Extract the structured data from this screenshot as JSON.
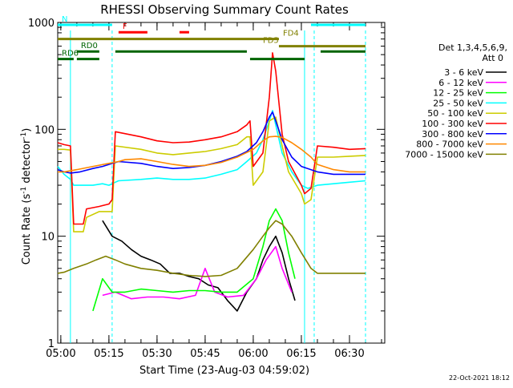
{
  "chart_data": {
    "type": "line",
    "title": "RHESSI Observing Summary Count Rates",
    "xlabel": "Start Time (23-Aug-03 04:59:02)",
    "ylabel": "Count Rate (s",
    "ylabel_sup1": "-1",
    "ylabel_mid": " detector",
    "ylabel_sup2": "-1",
    "ylabel_end": ")",
    "y_scale": "log",
    "ylim": [
      1,
      1000
    ],
    "xlim": [
      "04:59:02",
      "06:41:00"
    ],
    "x_ticks": [
      "05:00",
      "05:15",
      "05:30",
      "05:45",
      "06:00",
      "06:15",
      "06:30"
    ],
    "y_ticks": [
      "1",
      "10",
      "100",
      "1000"
    ],
    "legend_placement": "right",
    "legend_header": [
      "Det 1,3,4,5,6,9,",
      "Att 0"
    ],
    "series": [
      {
        "name": "3 - 6 keV",
        "color": "#000000",
        "points": [
          [
            "05:13",
            14
          ],
          [
            "05:16",
            10
          ],
          [
            "05:19",
            9
          ],
          [
            "05:22",
            7.5
          ],
          [
            "05:25",
            6.5
          ],
          [
            "05:28",
            6
          ],
          [
            "05:31",
            5.5
          ],
          [
            "05:34",
            4.5
          ],
          [
            "05:37",
            4.5
          ],
          [
            "05:40",
            4.2
          ],
          [
            "05:43",
            4
          ],
          [
            "05:46",
            3.5
          ],
          [
            "05:49",
            3.3
          ],
          [
            "05:52",
            2.5
          ],
          [
            "05:55",
            2
          ],
          [
            "05:58",
            3
          ],
          [
            "06:01",
            4
          ],
          [
            "06:03",
            6
          ],
          [
            "06:05",
            8
          ],
          [
            "06:07",
            10
          ],
          [
            "06:09",
            7
          ],
          [
            "06:11",
            4
          ],
          [
            "06:13",
            2.5
          ]
        ]
      },
      {
        "name": "6 - 12 keV",
        "color": "#ff00ff",
        "points": [
          [
            "05:13",
            2.8
          ],
          [
            "05:17",
            3
          ],
          [
            "05:22",
            2.6
          ],
          [
            "05:27",
            2.7
          ],
          [
            "05:32",
            2.7
          ],
          [
            "05:37",
            2.6
          ],
          [
            "05:42",
            2.8
          ],
          [
            "05:45",
            5
          ],
          [
            "05:48",
            3
          ],
          [
            "05:52",
            2.7
          ],
          [
            "05:57",
            2.8
          ],
          [
            "06:01",
            4
          ],
          [
            "06:04",
            6
          ],
          [
            "06:07",
            8
          ],
          [
            "06:09",
            5
          ],
          [
            "06:12",
            3
          ]
        ]
      },
      {
        "name": "12 - 25 keV",
        "color": "#00ff00",
        "points": [
          [
            "05:10",
            2
          ],
          [
            "05:13",
            4
          ],
          [
            "05:16",
            3
          ],
          [
            "05:20",
            3
          ],
          [
            "05:25",
            3.2
          ],
          [
            "05:30",
            3.1
          ],
          [
            "05:35",
            3
          ],
          [
            "05:40",
            3.1
          ],
          [
            "05:45",
            3.1
          ],
          [
            "05:50",
            3
          ],
          [
            "05:55",
            3
          ],
          [
            "06:00",
            4
          ],
          [
            "06:03",
            8
          ],
          [
            "06:05",
            14
          ],
          [
            "06:07",
            18
          ],
          [
            "06:09",
            14
          ],
          [
            "06:11",
            7
          ],
          [
            "06:13",
            4
          ]
        ]
      },
      {
        "name": "25 - 50 keV",
        "color": "#00ffff",
        "points": [
          [
            "04:59:02",
            45
          ],
          [
            "05:01",
            38
          ],
          [
            "05:03",
            34
          ],
          [
            "05:04",
            30
          ],
          [
            "05:07",
            30
          ],
          [
            "05:10",
            30
          ],
          [
            "05:13",
            31
          ],
          [
            "05:15",
            30
          ],
          [
            "05:17",
            32
          ],
          [
            "05:18",
            33
          ],
          [
            "05:25",
            34
          ],
          [
            "05:30",
            35
          ],
          [
            "05:35",
            34
          ],
          [
            "05:40",
            34
          ],
          [
            "05:45",
            35
          ],
          [
            "05:50",
            38
          ],
          [
            "05:55",
            42
          ],
          [
            "05:58",
            50
          ],
          [
            "06:01",
            60
          ],
          [
            "06:03",
            80
          ],
          [
            "06:05",
            120
          ],
          [
            "06:06",
            150
          ],
          [
            "06:07",
            110
          ],
          [
            "06:09",
            60
          ],
          [
            "06:12",
            40
          ],
          [
            "06:15",
            30
          ],
          [
            "06:17",
            28
          ],
          [
            "06:20",
            30
          ],
          [
            "06:25",
            31
          ],
          [
            "06:30",
            32
          ],
          [
            "06:35",
            33
          ]
        ]
      },
      {
        "name": "50 - 100 keV",
        "color": "#cccc00",
        "points": [
          [
            "04:59:02",
            65
          ],
          [
            "05:01",
            65
          ],
          [
            "05:03",
            64
          ],
          [
            "05:04",
            11
          ],
          [
            "05:07",
            11
          ],
          [
            "05:08",
            15
          ],
          [
            "05:12",
            17
          ],
          [
            "05:15",
            17
          ],
          [
            "05:16",
            17
          ],
          [
            "05:17",
            70
          ],
          [
            "05:25",
            65
          ],
          [
            "05:30",
            60
          ],
          [
            "05:35",
            58
          ],
          [
            "05:40",
            60
          ],
          [
            "05:45",
            62
          ],
          [
            "05:50",
            66
          ],
          [
            "05:55",
            72
          ],
          [
            "05:58",
            85
          ],
          [
            "05:59",
            85
          ],
          [
            "06:00",
            30
          ],
          [
            "06:03",
            40
          ],
          [
            "06:05",
            120
          ],
          [
            "06:07",
            130
          ],
          [
            "06:09",
            70
          ],
          [
            "06:11",
            40
          ],
          [
            "06:15",
            25
          ],
          [
            "06:16",
            20
          ],
          [
            "06:18",
            22
          ],
          [
            "06:20",
            55
          ],
          [
            "06:25",
            55
          ],
          [
            "06:30",
            56
          ],
          [
            "06:35",
            57
          ]
        ]
      },
      {
        "name": "100 - 300 keV",
        "color": "#ff0000",
        "points": [
          [
            "04:59:02",
            75
          ],
          [
            "05:01",
            72
          ],
          [
            "05:03",
            70
          ],
          [
            "05:04",
            13
          ],
          [
            "05:07",
            13
          ],
          [
            "05:08",
            18
          ],
          [
            "05:12",
            19
          ],
          [
            "05:15",
            20
          ],
          [
            "05:16",
            22
          ],
          [
            "05:17",
            95
          ],
          [
            "05:25",
            85
          ],
          [
            "05:30",
            78
          ],
          [
            "05:35",
            75
          ],
          [
            "05:40",
            76
          ],
          [
            "05:45",
            80
          ],
          [
            "05:50",
            85
          ],
          [
            "05:55",
            95
          ],
          [
            "05:58",
            110
          ],
          [
            "05:59",
            120
          ],
          [
            "06:00",
            45
          ],
          [
            "06:03",
            60
          ],
          [
            "06:05",
            200
          ],
          [
            "06:06",
            520
          ],
          [
            "06:07",
            350
          ],
          [
            "06:09",
            90
          ],
          [
            "06:11",
            50
          ],
          [
            "06:15",
            30
          ],
          [
            "06:16",
            25
          ],
          [
            "06:18",
            28
          ],
          [
            "06:20",
            70
          ],
          [
            "06:25",
            68
          ],
          [
            "06:30",
            65
          ],
          [
            "06:35",
            66
          ]
        ]
      },
      {
        "name": "300 - 800 keV",
        "color": "#0000ff",
        "points": [
          [
            "04:59:02",
            42
          ],
          [
            "05:01",
            40
          ],
          [
            "05:03",
            39
          ],
          [
            "05:06",
            40
          ],
          [
            "05:10",
            43
          ],
          [
            "05:13",
            45
          ],
          [
            "05:15",
            47
          ],
          [
            "05:18",
            50
          ],
          [
            "05:25",
            48
          ],
          [
            "05:30",
            45
          ],
          [
            "05:35",
            43
          ],
          [
            "05:40",
            44
          ],
          [
            "05:45",
            46
          ],
          [
            "05:50",
            50
          ],
          [
            "05:55",
            56
          ],
          [
            "05:58",
            62
          ],
          [
            "06:01",
            75
          ],
          [
            "06:03",
            95
          ],
          [
            "06:05",
            130
          ],
          [
            "06:06",
            145
          ],
          [
            "06:07",
            120
          ],
          [
            "06:09",
            80
          ],
          [
            "06:12",
            55
          ],
          [
            "06:15",
            45
          ],
          [
            "06:20",
            40
          ],
          [
            "06:25",
            38
          ],
          [
            "06:30",
            38
          ],
          [
            "06:35",
            38
          ]
        ]
      },
      {
        "name": "800 - 7000 keV",
        "color": "#ff8800",
        "points": [
          [
            "04:59:02",
            40
          ],
          [
            "05:01",
            40
          ],
          [
            "05:05",
            42
          ],
          [
            "05:10",
            45
          ],
          [
            "05:15",
            48
          ],
          [
            "05:18",
            50
          ],
          [
            "05:20",
            52
          ],
          [
            "05:25",
            53
          ],
          [
            "05:30",
            50
          ],
          [
            "05:35",
            47
          ],
          [
            "05:40",
            45
          ],
          [
            "05:45",
            46
          ],
          [
            "05:50",
            49
          ],
          [
            "05:55",
            55
          ],
          [
            "06:00",
            65
          ],
          [
            "06:03",
            78
          ],
          [
            "06:05",
            85
          ],
          [
            "06:07",
            86
          ],
          [
            "06:09",
            84
          ],
          [
            "06:12",
            75
          ],
          [
            "06:15",
            65
          ],
          [
            "06:18",
            55
          ],
          [
            "06:20",
            47
          ],
          [
            "06:25",
            42
          ],
          [
            "06:30",
            40
          ],
          [
            "06:35",
            40
          ]
        ]
      },
      {
        "name": "7000 - 15000 keV",
        "color": "#808000",
        "points": [
          [
            "04:59:02",
            4.5
          ],
          [
            "05:01",
            4.6
          ],
          [
            "05:04",
            5
          ],
          [
            "05:08",
            5.5
          ],
          [
            "05:11",
            6
          ],
          [
            "05:14",
            6.5
          ],
          [
            "05:17",
            6
          ],
          [
            "05:20",
            5.5
          ],
          [
            "05:25",
            5
          ],
          [
            "05:30",
            4.8
          ],
          [
            "05:35",
            4.5
          ],
          [
            "05:40",
            4.3
          ],
          [
            "05:45",
            4.2
          ],
          [
            "05:50",
            4.3
          ],
          [
            "05:55",
            5
          ],
          [
            "06:00",
            7.5
          ],
          [
            "06:03",
            10
          ],
          [
            "06:05",
            12
          ],
          [
            "06:07",
            14
          ],
          [
            "06:09",
            13
          ],
          [
            "06:12",
            10
          ],
          [
            "06:15",
            7
          ],
          [
            "06:18",
            5
          ],
          [
            "06:20",
            4.5
          ],
          [
            "06:25",
            4.5
          ],
          [
            "06:30",
            4.5
          ],
          [
            "06:35",
            4.5
          ]
        ]
      }
    ],
    "annotation_bars": [
      {
        "label": "N",
        "color": "#00ffff",
        "segments": [
          [
            "04:59:02",
            "05:16"
          ],
          [
            "06:18",
            "06:35"
          ]
        ],
        "level": 950
      },
      {
        "label": "F",
        "color": "#ff0000",
        "segments": [
          [
            "05:18",
            "05:27"
          ],
          [
            "05:37",
            "05:40"
          ]
        ],
        "level": 810
      },
      {
        "label": "FD4",
        "color": "#808000",
        "segments": [
          [
            "04:59:02",
            "06:08"
          ]
        ],
        "level": 700
      },
      {
        "label": "FD5",
        "color": "#808000",
        "segments": [
          [
            "06:08",
            "06:35"
          ]
        ],
        "level": 600
      },
      {
        "label": "RD0",
        "color": "#006400",
        "segments": [
          [
            "05:05",
            "05:12"
          ],
          [
            "05:17",
            "05:58"
          ],
          [
            "06:21",
            "06:35"
          ]
        ],
        "level": 535
      },
      {
        "label": "RD6",
        "color": "#006400",
        "segments": [
          [
            "04:59:02",
            "05:04"
          ],
          [
            "05:05",
            "05:12"
          ],
          [
            "05:59",
            "06:16"
          ]
        ],
        "level": 455
      }
    ],
    "vertical_markers": [
      {
        "time": "05:03",
        "style": "solid",
        "color": "#00ffff"
      },
      {
        "time": "05:16",
        "style": "dashed",
        "color": "#00ffff"
      },
      {
        "time": "06:16",
        "style": "solid",
        "color": "#00ffff"
      },
      {
        "time": "06:19",
        "style": "dashed",
        "color": "#00ffff"
      },
      {
        "time": "06:35",
        "style": "dashed",
        "color": "#00ffff"
      }
    ]
  },
  "footer": {
    "timestamp": "22-Oct-2021 18:12"
  }
}
